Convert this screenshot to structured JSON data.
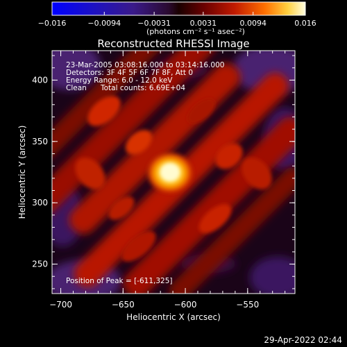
{
  "colorbar": {
    "ticks": [
      "-0.016",
      "-0.0094",
      "-0.0031",
      "0.0031",
      "0.0094",
      "0.016"
    ],
    "tick_values": [
      -0.016,
      -0.0094,
      -0.0031,
      0.0031,
      0.0094,
      0.016
    ],
    "range": [
      -0.016,
      0.016
    ],
    "unit_label": "(photons cm⁻² s⁻¹ asec⁻²)"
  },
  "chart_data": {
    "type": "heatmap",
    "title": "Reconstructed RHESSI Image",
    "xlabel": "Heliocentric X (arcsec)",
    "ylabel": "Heliocentric Y (arcsec)",
    "xlim": [
      -707,
      -512
    ],
    "ylim": [
      226,
      424
    ],
    "xticks": [
      -700,
      -650,
      -600,
      -550
    ],
    "yticks": [
      250,
      300,
      350,
      400
    ],
    "peak": {
      "x": -611,
      "y": 325,
      "value": 0.016
    },
    "grid": false
  },
  "info": {
    "line1": "23-Mar-2005 03:08:16.000 to 03:14:16.000",
    "line2": "Detectors: 3F 4F 5F 6F 7F 8F, Att 0",
    "line3": "Energy Range: 6.0 - 12.0 keV",
    "line4_method": "Clean",
    "line4_counts": "Total counts: 6.69E+04",
    "peak_text": "Position of Peak = [-611,325]"
  },
  "footer": {
    "timestamp": "29-Apr-2022 02:44"
  },
  "colors": {
    "background": "#000000",
    "cmap": [
      "#0000ff",
      "#1a0aa0",
      "#2a1060",
      "#330826",
      "#5a0000",
      "#a00c00",
      "#d93a00",
      "#ff9800",
      "#ffe066",
      "#ffffe0"
    ]
  }
}
